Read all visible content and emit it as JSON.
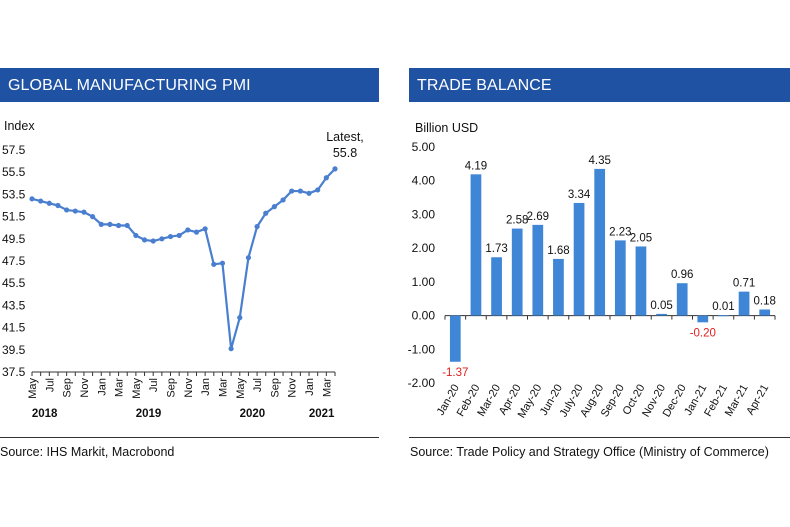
{
  "left_panel": {
    "header": "GLOBAL MANUFACTURING PMI",
    "source": "Source: IHS Markit, Macrobond"
  },
  "right_panel": {
    "header": "TRADE BALANCE",
    "source": "Source: Trade Policy and Strategy Office (Ministry of Commerce)"
  },
  "colors": {
    "header_bg": "#1f52a3",
    "series": "#4a7fd0",
    "bar": "#3f86d6",
    "negative_label": "#e0201e"
  },
  "chart_data": [
    {
      "type": "line",
      "title": "GLOBAL MANUFACTURING PMI",
      "ylabel": "Index",
      "ylim": [
        37.5,
        57.5
      ],
      "yticks": [
        "57.5",
        "55.5",
        "53.5",
        "51.5",
        "49.5",
        "47.5",
        "45.5",
        "43.5",
        "41.5",
        "39.5",
        "37.5"
      ],
      "xtick_labels": [
        {
          "label": "May",
          "idx": 0
        },
        {
          "label": "Jul",
          "idx": 2
        },
        {
          "label": "Sep",
          "idx": 4
        },
        {
          "label": "Nov",
          "idx": 6
        },
        {
          "label": "Jan",
          "idx": 8
        },
        {
          "label": "Mar",
          "idx": 10
        },
        {
          "label": "May",
          "idx": 12
        },
        {
          "label": "Jul",
          "idx": 14
        },
        {
          "label": "Sep",
          "idx": 16
        },
        {
          "label": "Nov",
          "idx": 18
        },
        {
          "label": "Jan",
          "idx": 20
        },
        {
          "label": "Mar",
          "idx": 22
        },
        {
          "label": "May",
          "idx": 24
        },
        {
          "label": "Jul",
          "idx": 26
        },
        {
          "label": "Sep",
          "idx": 28
        },
        {
          "label": "Nov",
          "idx": 30
        },
        {
          "label": "Jan",
          "idx": 32
        },
        {
          "label": "Mar",
          "idx": 34
        }
      ],
      "years": [
        {
          "label": "2018",
          "idx": 1
        },
        {
          "label": "2019",
          "idx": 13
        },
        {
          "label": "2020",
          "idx": 25
        },
        {
          "label": "2021",
          "idx": 33
        }
      ],
      "series": [
        {
          "name": "Global Manufacturing PMI",
          "start": "May 2018",
          "values": [
            53.1,
            52.9,
            52.7,
            52.5,
            52.1,
            52.0,
            51.9,
            51.5,
            50.8,
            50.8,
            50.7,
            50.7,
            49.8,
            49.4,
            49.3,
            49.5,
            49.7,
            49.8,
            50.3,
            50.1,
            50.4,
            47.2,
            47.3,
            39.6,
            42.4,
            47.8,
            50.6,
            51.8,
            52.4,
            53.0,
            53.8,
            53.8,
            53.6,
            53.9,
            55.0,
            55.8
          ]
        }
      ],
      "annotation": {
        "line1": "Latest,",
        "line2": "55.8"
      }
    },
    {
      "type": "bar",
      "title": "TRADE BALANCE",
      "ylabel": "Billion USD",
      "ylim": [
        -2.0,
        5.0
      ],
      "yticks": [
        "5.00",
        "4.00",
        "3.00",
        "2.00",
        "1.00",
        "0.00",
        "-1.00",
        "-2.00"
      ],
      "categories": [
        "Jan-20",
        "Feb-20",
        "Mar-20",
        "Apr-20",
        "May-20",
        "Jun-20",
        "July-20",
        "Aug-20",
        "Sep-20",
        "Oct-20",
        "Nov-20",
        "Dec-20",
        "Jan-21",
        "Feb-21",
        "Mar-21",
        "Apr-21"
      ],
      "values": [
        -1.37,
        4.19,
        1.73,
        2.58,
        2.69,
        1.68,
        3.34,
        4.35,
        2.23,
        2.05,
        0.05,
        0.96,
        -0.2,
        0.01,
        0.71,
        0.18
      ],
      "value_labels": [
        "-1.37",
        "4.19",
        "1.73",
        "2.58",
        "2.69",
        "1.68",
        "3.34",
        "4.35",
        "2.23",
        "2.05",
        "0.05",
        "0.96",
        "-0.20",
        "0.01",
        "0.71",
        "0.18"
      ]
    }
  ]
}
